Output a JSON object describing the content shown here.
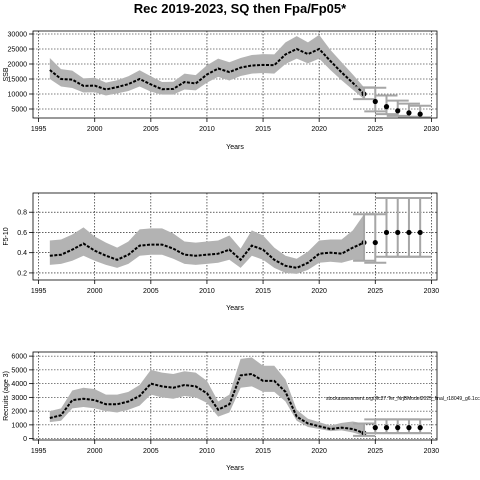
{
  "title": "Rec 2019-2023, SQ then Fpa/Fp05*",
  "chart_data": [
    {
      "type": "line",
      "panel": "ssb",
      "xlabel": "Years",
      "ylabel": "SSB",
      "xlim": [
        1994.5,
        2030.5
      ],
      "ylim": [
        2000,
        31000
      ],
      "xticks": [
        1995,
        2000,
        2005,
        2010,
        2015,
        2020,
        2025,
        2030
      ],
      "yticks": [
        5000,
        10000,
        15000,
        20000,
        25000,
        30000
      ],
      "grid": true,
      "years": [
        1996,
        1997,
        1998,
        1999,
        2000,
        2001,
        2002,
        2003,
        2004,
        2005,
        2006,
        2007,
        2008,
        2009,
        2010,
        2011,
        2012,
        2013,
        2014,
        2015,
        2016,
        2017,
        2018,
        2019,
        2020,
        2021,
        2022,
        2023,
        2024
      ],
      "median": [
        18000,
        15000,
        14800,
        12700,
        12800,
        11500,
        12300,
        13300,
        15000,
        13200,
        11600,
        11700,
        14000,
        13500,
        16500,
        18500,
        17300,
        18800,
        19500,
        19700,
        19600,
        23200,
        25000,
        23300,
        25000,
        21000,
        17200,
        13700,
        10000
      ],
      "lower": [
        15000,
        12500,
        12000,
        10500,
        10600,
        9500,
        10200,
        11000,
        12500,
        10800,
        9800,
        9800,
        11500,
        11200,
        13800,
        15700,
        14500,
        16000,
        16800,
        17000,
        16800,
        20000,
        21800,
        20200,
        21800,
        18000,
        14600,
        11400,
        8300
      ],
      "upper": [
        22000,
        18300,
        17800,
        15200,
        15400,
        13800,
        14600,
        15900,
        17900,
        15900,
        14000,
        14100,
        16800,
        16300,
        19600,
        21800,
        20600,
        22000,
        23000,
        23300,
        23200,
        27200,
        29300,
        27200,
        29700,
        24700,
        20600,
        16500,
        12200
      ],
      "projection": {
        "years": [
          2025,
          2026,
          2027,
          2028,
          2029
        ],
        "median": [
          7500,
          5800,
          4400,
          3700,
          3300
        ],
        "lower": [
          4200,
          3300,
          2700,
          2400,
          2200
        ],
        "upper": [
          12100,
          9500,
          7800,
          6800,
          6100
        ]
      }
    },
    {
      "type": "line",
      "panel": "f",
      "xlabel": "Years",
      "ylabel": "F5-10",
      "xlim": [
        1994.5,
        2030.5
      ],
      "ylim": [
        0.13,
        0.99
      ],
      "xticks": [
        1995,
        2000,
        2005,
        2010,
        2015,
        2020,
        2025,
        2030
      ],
      "yticks": [
        0.2,
        0.4,
        0.6,
        0.8
      ],
      "grid": true,
      "years": [
        1996,
        1997,
        1998,
        1999,
        2000,
        2001,
        2002,
        2003,
        2004,
        2005,
        2006,
        2007,
        2008,
        2009,
        2010,
        2011,
        2012,
        2013,
        2014,
        2015,
        2016,
        2017,
        2018,
        2019,
        2020,
        2021,
        2022,
        2023,
        2024
      ],
      "median": [
        0.37,
        0.38,
        0.43,
        0.49,
        0.42,
        0.37,
        0.33,
        0.38,
        0.47,
        0.48,
        0.48,
        0.44,
        0.38,
        0.37,
        0.38,
        0.39,
        0.43,
        0.33,
        0.47,
        0.43,
        0.33,
        0.27,
        0.25,
        0.3,
        0.39,
        0.4,
        0.39,
        0.45,
        0.5
      ],
      "lower": [
        0.28,
        0.29,
        0.32,
        0.37,
        0.32,
        0.28,
        0.25,
        0.29,
        0.37,
        0.38,
        0.38,
        0.34,
        0.29,
        0.28,
        0.29,
        0.3,
        0.33,
        0.25,
        0.37,
        0.33,
        0.25,
        0.2,
        0.19,
        0.23,
        0.3,
        0.31,
        0.3,
        0.33,
        0.32
      ],
      "upper": [
        0.52,
        0.53,
        0.58,
        0.65,
        0.56,
        0.5,
        0.45,
        0.51,
        0.63,
        0.64,
        0.64,
        0.59,
        0.51,
        0.5,
        0.51,
        0.52,
        0.57,
        0.44,
        0.62,
        0.57,
        0.45,
        0.37,
        0.34,
        0.41,
        0.52,
        0.53,
        0.53,
        0.62,
        0.78
      ],
      "projection": {
        "years": [
          2025,
          2026,
          2027,
          2028,
          2029
        ],
        "median": [
          0.5,
          0.6,
          0.6,
          0.6,
          0.6
        ],
        "lower": [
          0.3,
          0.36,
          0.36,
          0.36,
          0.36
        ],
        "upper": [
          0.78,
          0.94,
          0.94,
          0.94,
          0.94
        ]
      }
    },
    {
      "type": "line",
      "panel": "recruits",
      "xlabel": "Years",
      "ylabel": "Recruits (age 3)",
      "xlim": [
        1994.5,
        2030.5
      ],
      "ylim": [
        -100,
        6300
      ],
      "xticks": [
        1995,
        2000,
        2005,
        2010,
        2015,
        2020,
        2025,
        2030
      ],
      "yticks": [
        0,
        1000,
        2000,
        3000,
        4000,
        5000,
        6000
      ],
      "grid": true,
      "annotation": "stockassessment.org/Jfc27.Ter_NrjBModel2025_final_r18049_g6.1cc",
      "years": [
        1996,
        1997,
        1998,
        1999,
        2000,
        2001,
        2002,
        2003,
        2004,
        2005,
        2006,
        2007,
        2008,
        2009,
        2010,
        2011,
        2012,
        2013,
        2014,
        2015,
        2016,
        2017,
        2018,
        2019,
        2020,
        2021,
        2022,
        2023,
        2024
      ],
      "median": [
        1500,
        1700,
        2800,
        2900,
        2800,
        2500,
        2500,
        2700,
        3100,
        4000,
        3800,
        3700,
        3900,
        3800,
        3300,
        2100,
        2500,
        4600,
        4700,
        4200,
        4200,
        3400,
        1600,
        1100,
        900,
        700,
        800,
        700,
        400
      ],
      "lower": [
        1200,
        1300,
        2200,
        2300,
        2200,
        2000,
        1900,
        2100,
        2400,
        3200,
        3000,
        2900,
        3100,
        3000,
        2600,
        1600,
        1900,
        3700,
        3800,
        3400,
        3400,
        2700,
        1300,
        850,
        700,
        550,
        600,
        450,
        200
      ],
      "upper": [
        2000,
        2200,
        3500,
        3700,
        3600,
        3200,
        3200,
        3400,
        3900,
        5000,
        4800,
        4700,
        4900,
        4800,
        4200,
        2700,
        3200,
        5800,
        5900,
        5300,
        5300,
        4300,
        2100,
        1450,
        1200,
        950,
        1150,
        1250,
        1100
      ],
      "projection": {
        "years": [
          2025,
          2026,
          2027,
          2028,
          2029
        ],
        "median": [
          800,
          800,
          800,
          800,
          800
        ],
        "lower": [
          400,
          400,
          400,
          400,
          400
        ],
        "upper": [
          1400,
          1400,
          1400,
          1400,
          1400
        ]
      }
    }
  ]
}
